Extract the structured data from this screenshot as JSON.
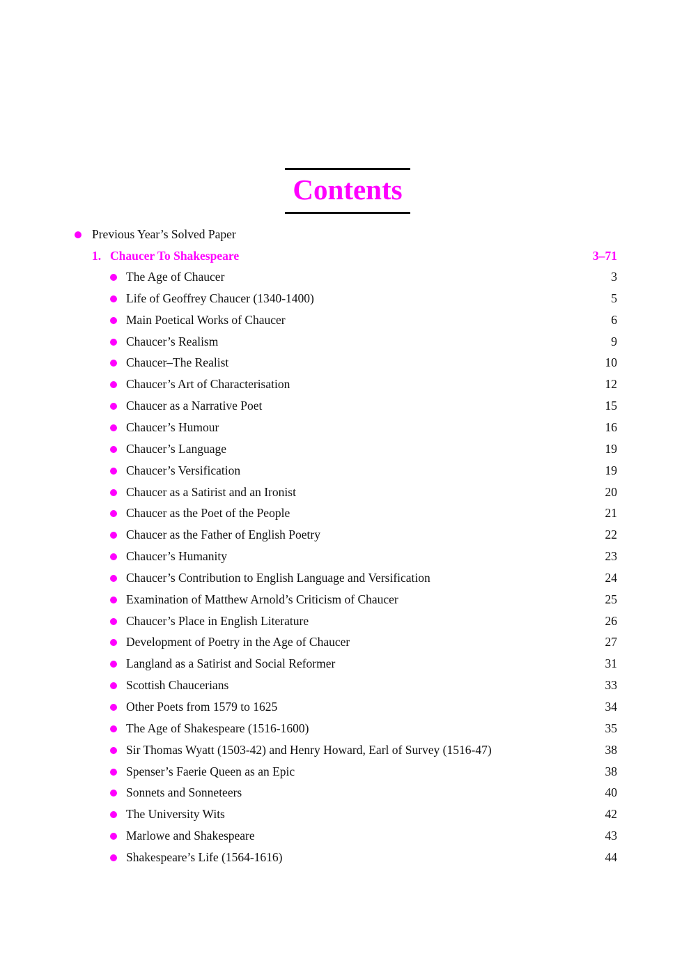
{
  "title": "Contents",
  "accent_color": "#ff00ff",
  "intro_item": "Previous Year’s Solved Paper",
  "chapter": {
    "number": "1.",
    "title": "Chaucer To Shakespeare",
    "pages": "3–71"
  },
  "items": [
    {
      "label": "The Age of Chaucer",
      "page": "3"
    },
    {
      "label": "Life of Geoffrey Chaucer (1340-1400)",
      "page": "5"
    },
    {
      "label": "Main Poetical Works of Chaucer",
      "page": "6"
    },
    {
      "label": "Chaucer’s Realism",
      "page": "9"
    },
    {
      "label": "Chaucer–The Realist",
      "page": "10"
    },
    {
      "label": "Chaucer’s Art of Characterisation",
      "page": "12"
    },
    {
      "label": "Chaucer as a Narrative Poet",
      "page": "15"
    },
    {
      "label": "Chaucer’s Humour",
      "page": "16"
    },
    {
      "label": "Chaucer’s Language",
      "page": "19"
    },
    {
      "label": "Chaucer’s Versification",
      "page": "19"
    },
    {
      "label": "Chaucer as a Satirist and an Ironist",
      "page": "20"
    },
    {
      "label": "Chaucer as the Poet of the People",
      "page": "21"
    },
    {
      "label": "Chaucer as the Father of English Poetry",
      "page": "22"
    },
    {
      "label": "Chaucer’s Humanity",
      "page": "23"
    },
    {
      "label": "Chaucer’s Contribution to English Language and Versification",
      "page": "24"
    },
    {
      "label": "Examination of Matthew Arnold’s Criticism of Chaucer",
      "page": "25"
    },
    {
      "label": "Chaucer’s Place in English Literature",
      "page": "26"
    },
    {
      "label": "Development of Poetry in the Age of Chaucer",
      "page": "27"
    },
    {
      "label": "Langland as a Satirist and Social Reformer",
      "page": "31"
    },
    {
      "label": "Scottish Chaucerians",
      "page": "33"
    },
    {
      "label": "Other Poets from 1579 to 1625",
      "page": "34"
    },
    {
      "label": "The Age of Shakespeare (1516-1600)",
      "page": "35"
    },
    {
      "label": "Sir Thomas Wyatt (1503-42) and Henry Howard, Earl of Survey (1516-47)",
      "page": "38"
    },
    {
      "label": "Spenser’s Faerie Queen as an Epic",
      "page": "38"
    },
    {
      "label": "Sonnets and Sonneteers",
      "page": "40"
    },
    {
      "label": "The University Wits",
      "page": "42"
    },
    {
      "label": "Marlowe and Shakespeare",
      "page": "43"
    },
    {
      "label": "Shakespeare’s Life (1564-1616)",
      "page": "44"
    }
  ]
}
